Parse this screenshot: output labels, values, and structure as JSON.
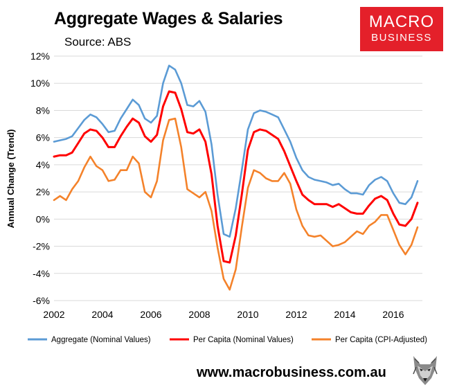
{
  "header": {
    "title": "Aggregate Wages & Salaries",
    "source": "Source: ABS"
  },
  "brand": {
    "line1": "MACRO",
    "line2": "BUSINESS",
    "color": "#e4202a"
  },
  "footer": {
    "url": "www.macrobusiness.com.au",
    "logo_icon": "wolf-head-icon"
  },
  "chart_data": {
    "type": "line",
    "title": "Aggregate Wages & Salaries",
    "ylabel": "Annual Change (Trend)",
    "xlabel": "",
    "xlim": [
      2002.0,
      2017.2
    ],
    "ylim": [
      -6,
      12
    ],
    "y_ticks": [
      -6,
      -4,
      -2,
      0,
      2,
      4,
      6,
      8,
      10,
      12
    ],
    "y_tick_labels": [
      "-6%",
      "-4%",
      "-2%",
      "0%",
      "2%",
      "4%",
      "6%",
      "8%",
      "10%",
      "12%"
    ],
    "x_ticks": [
      2002,
      2004,
      2006,
      2008,
      2010,
      2012,
      2014,
      2016
    ],
    "x_tick_labels": [
      "2002",
      "2004",
      "2006",
      "2008",
      "2010",
      "2012",
      "2014",
      "2016"
    ],
    "grid": "horizontal",
    "legend_position": "bottom",
    "x": [
      2002.0,
      2002.25,
      2002.5,
      2002.75,
      2003.0,
      2003.25,
      2003.5,
      2003.75,
      2004.0,
      2004.25,
      2004.5,
      2004.75,
      2005.0,
      2005.25,
      2005.5,
      2005.75,
      2006.0,
      2006.25,
      2006.5,
      2006.75,
      2007.0,
      2007.25,
      2007.5,
      2007.75,
      2008.0,
      2008.25,
      2008.5,
      2008.75,
      2009.0,
      2009.25,
      2009.5,
      2009.75,
      2010.0,
      2010.25,
      2010.5,
      2010.75,
      2011.0,
      2011.25,
      2011.5,
      2011.75,
      2012.0,
      2012.25,
      2012.5,
      2012.75,
      2013.0,
      2013.25,
      2013.5,
      2013.75,
      2014.0,
      2014.25,
      2014.5,
      2014.75,
      2015.0,
      2015.25,
      2015.5,
      2015.75,
      2016.0,
      2016.25,
      2016.5,
      2016.75,
      2017.0
    ],
    "series": [
      {
        "name": "Aggregate (Nominal Values)",
        "color": "#5b9bd5",
        "values": [
          5.7,
          5.8,
          5.9,
          6.1,
          6.7,
          7.3,
          7.7,
          7.5,
          7.0,
          6.4,
          6.5,
          7.4,
          8.1,
          8.8,
          8.4,
          7.4,
          7.1,
          7.6,
          10.0,
          11.3,
          11.0,
          10.0,
          8.4,
          8.3,
          8.7,
          7.9,
          5.5,
          1.8,
          -1.1,
          -1.3,
          0.8,
          3.6,
          6.6,
          7.8,
          8.0,
          7.9,
          7.7,
          7.5,
          6.6,
          5.7,
          4.5,
          3.6,
          3.1,
          2.9,
          2.8,
          2.7,
          2.5,
          2.6,
          2.2,
          1.9,
          1.9,
          1.8,
          2.5,
          2.9,
          3.1,
          2.8,
          1.9,
          1.2,
          1.1,
          1.6,
          2.8
        ]
      },
      {
        "name": "Per Capita (Nominal Values)",
        "color": "#ff0000",
        "values": [
          4.6,
          4.7,
          4.7,
          4.9,
          5.6,
          6.3,
          6.6,
          6.5,
          6.0,
          5.3,
          5.3,
          6.1,
          6.8,
          7.4,
          7.1,
          6.1,
          5.7,
          6.2,
          8.3,
          9.4,
          9.3,
          8.1,
          6.4,
          6.3,
          6.6,
          5.7,
          3.3,
          -0.5,
          -3.1,
          -3.2,
          -1.2,
          1.8,
          5.1,
          6.4,
          6.6,
          6.5,
          6.2,
          5.9,
          5.0,
          3.9,
          2.8,
          1.8,
          1.4,
          1.1,
          1.1,
          1.1,
          0.9,
          1.1,
          0.8,
          0.5,
          0.4,
          0.4,
          1.0,
          1.5,
          1.7,
          1.4,
          0.4,
          -0.4,
          -0.5,
          0.0,
          1.2
        ]
      },
      {
        "name": "Per Capita (CPI-Adjusted)",
        "color": "#f4822a",
        "values": [
          1.4,
          1.7,
          1.4,
          2.2,
          2.8,
          3.8,
          4.6,
          3.9,
          3.6,
          2.8,
          2.9,
          3.6,
          3.6,
          4.6,
          4.1,
          2.0,
          1.6,
          2.8,
          5.8,
          7.3,
          7.4,
          5.3,
          2.2,
          1.9,
          1.6,
          2.0,
          0.6,
          -2.1,
          -4.4,
          -5.2,
          -3.7,
          -0.6,
          2.3,
          3.6,
          3.4,
          3.0,
          2.8,
          2.8,
          3.4,
          2.6,
          0.7,
          -0.5,
          -1.2,
          -1.3,
          -1.2,
          -1.6,
          -2.0,
          -1.9,
          -1.7,
          -1.3,
          -0.9,
          -1.1,
          -0.5,
          -0.2,
          0.3,
          0.3,
          -0.8,
          -1.9,
          -2.6,
          -1.9,
          -0.6
        ]
      }
    ]
  }
}
